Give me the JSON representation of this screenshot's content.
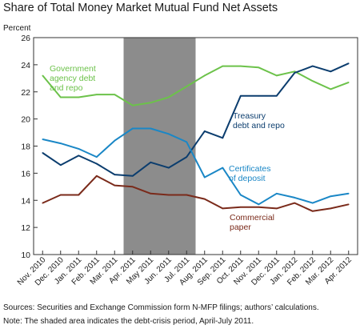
{
  "chart_data": {
    "type": "line",
    "title": "Share of Total Money Market Mutual Fund Net Assets",
    "ylabel": "Percent",
    "ylim": [
      10,
      26
    ],
    "yticks": [
      10,
      12,
      14,
      16,
      18,
      20,
      22,
      24,
      26
    ],
    "x": [
      "Nov. 2010",
      "Dec. 2010",
      "Jan. 2011",
      "Feb. 2011",
      "Mar. 2011",
      "Apr. 2011",
      "May 2011",
      "Jun. 2011",
      "Jul. 2011",
      "Aug. 2011",
      "Sep. 2011",
      "Oct. 2011",
      "Nov. 2011",
      "Dec. 2011",
      "Jan. 2012",
      "Feb. 2012",
      "Mar. 2012",
      "Apr. 2012"
    ],
    "shaded_period": {
      "from": "Apr. 2011",
      "to": "Jul. 2011"
    },
    "grid": false,
    "series": [
      {
        "name": "Government agency debt and repo",
        "label_lines": [
          "Government",
          "agency debt",
          "and repo"
        ],
        "color": "#6cc24a",
        "values": [
          23.2,
          21.6,
          21.6,
          21.8,
          21.8,
          21.0,
          21.2,
          21.6,
          22.4,
          23.2,
          23.9,
          23.9,
          23.8,
          23.2,
          23.5,
          22.8,
          22.2,
          22.7
        ]
      },
      {
        "name": "Treasury debt and repo",
        "label_lines": [
          "Treasury",
          "debt and repo"
        ],
        "color": "#0b3d6e",
        "values": [
          17.5,
          16.6,
          17.3,
          16.7,
          15.9,
          15.8,
          16.8,
          16.4,
          17.2,
          19.1,
          18.6,
          21.7,
          21.7,
          21.7,
          23.4,
          23.9,
          23.5,
          24.1
        ]
      },
      {
        "name": "Certificates of deposit",
        "label_lines": [
          "Certificates",
          "of deposit"
        ],
        "color": "#1a87c6",
        "values": [
          18.5,
          18.2,
          17.8,
          17.2,
          18.4,
          19.3,
          19.3,
          18.9,
          18.3,
          15.7,
          16.4,
          14.4,
          13.7,
          14.5,
          14.2,
          13.8,
          14.3,
          14.5
        ]
      },
      {
        "name": "Commercial paper",
        "label_lines": [
          "Commercial",
          "paper"
        ],
        "color": "#7a2a1a",
        "values": [
          13.8,
          14.4,
          14.4,
          15.8,
          15.1,
          15.0,
          14.5,
          14.4,
          14.4,
          14.1,
          13.4,
          13.5,
          13.5,
          13.4,
          13.8,
          13.2,
          13.4,
          13.7
        ]
      }
    ]
  },
  "footnotes": {
    "sources": "Sources: Securities and Exchange Commission form N-MFP filings; authors’ calculations.",
    "note": "Note: The shaded area indicates the debt-crisis period, April-July 2011."
  }
}
